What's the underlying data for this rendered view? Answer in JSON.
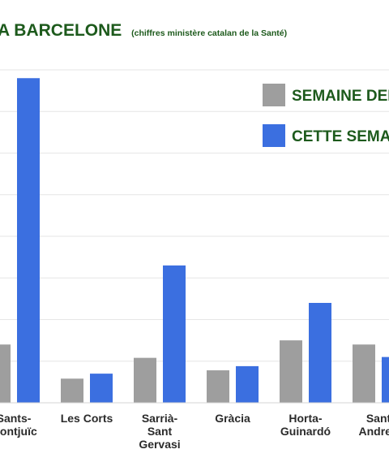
{
  "chart_data": {
    "type": "bar",
    "title": "S A BARCELONE",
    "subtitle": "(chiffres ministère catalan de la Santé)",
    "categories": [
      [
        "Sants-",
        "Montjuïc"
      ],
      [
        "Les Corts"
      ],
      [
        "Sarrià-",
        "Sant",
        "Gervasi"
      ],
      [
        "Gràcia"
      ],
      [
        "Horta-",
        "Guinardó"
      ],
      [
        "Sant",
        "Andreu"
      ]
    ],
    "series": [
      {
        "name": "SEMAINE DER",
        "color": "#9e9e9e",
        "values": [
          140,
          58,
          108,
          78,
          150,
          140
        ]
      },
      {
        "name": "CETTE SEMAIN",
        "color": "#3b6fe0",
        "values": [
          780,
          70,
          330,
          88,
          240,
          110
        ]
      }
    ],
    "ylim": [
      0,
      800
    ],
    "grid": true,
    "legend_position": "top-right"
  }
}
